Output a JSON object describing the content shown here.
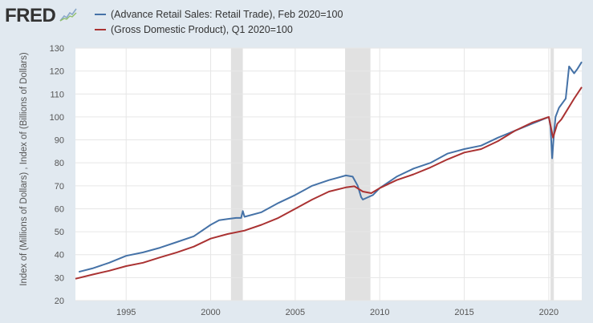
{
  "logo": {
    "text": "FRED",
    "icon": "fred-chart-icon"
  },
  "chart_data": {
    "type": "line",
    "xlabel": "",
    "ylabel": "Index of (Millions of Dollars) , Index of (Billions of Dollars)",
    "xlim": [
      1992.0,
      2021.95
    ],
    "ylim": [
      20,
      130
    ],
    "yticks": [
      20,
      30,
      40,
      50,
      60,
      70,
      80,
      90,
      100,
      110,
      120,
      130
    ],
    "xticks": [
      1995,
      2000,
      2005,
      2010,
      2015,
      2020
    ],
    "grid": true,
    "legend_position": "top-left",
    "recessions": [
      [
        2001.2,
        2001.9
      ],
      [
        2007.95,
        2009.45
      ],
      [
        2020.1,
        2020.3
      ]
    ],
    "series": [
      {
        "name": "(Advance Retail Sales: Retail Trade), Feb 2020=100",
        "color": "#4572a7",
        "x": [
          1992.2,
          1993,
          1994,
          1995,
          1996,
          1997,
          1998,
          1999,
          2000,
          2000.5,
          2001,
          2001.5,
          2001.8,
          2001.9,
          2002,
          2003,
          2004,
          2005,
          2006,
          2007,
          2007.5,
          2008,
          2008.4,
          2008.7,
          2008.9,
          2009,
          2009.3,
          2009.6,
          2010,
          2011,
          2012,
          2013,
          2014,
          2015,
          2016,
          2017,
          2018,
          2019,
          2019.5,
          2020,
          2020.1,
          2020.2,
          2020.3,
          2020.4,
          2020.6,
          2021,
          2021.2,
          2021.5,
          2021.7,
          2021.95
        ],
        "y": [
          32.5,
          34,
          36.5,
          39.5,
          41,
          43,
          45.5,
          48,
          53,
          55,
          55.5,
          56,
          56,
          59,
          56.5,
          58.5,
          62.5,
          66,
          70,
          72.5,
          73.5,
          74.5,
          74,
          70,
          65,
          64,
          65,
          66,
          69,
          74,
          77.5,
          80,
          84,
          86,
          87.5,
          91,
          94,
          97,
          98.5,
          100,
          96,
          82,
          92,
          100,
          104,
          108,
          122,
          119,
          121,
          124
        ]
      },
      {
        "name": "(Gross Domestic Product), Q1 2020=100",
        "color": "#aa3232",
        "x": [
          1992.0,
          1993,
          1994,
          1995,
          1996,
          1997,
          1998,
          1999,
          2000,
          2001,
          2002,
          2003,
          2004,
          2005,
          2006,
          2007,
          2008,
          2008.5,
          2009,
          2009.5,
          2010,
          2011,
          2012,
          2013,
          2014,
          2015,
          2016,
          2017,
          2018,
          2019,
          2020,
          2020.25,
          2020.5,
          2020.75,
          2021,
          2021.5,
          2021.95
        ],
        "y": [
          29.5,
          31.3,
          33,
          35,
          36.5,
          38.8,
          41,
          43.5,
          47,
          49,
          50.5,
          53,
          56,
          60,
          64,
          67.5,
          69.3,
          69.8,
          67.5,
          66.8,
          69,
          72.5,
          75,
          78,
          81.5,
          84.5,
          86,
          89.5,
          94,
          97.5,
          100,
          91,
          97,
          99,
          102,
          108,
          113
        ]
      }
    ]
  }
}
